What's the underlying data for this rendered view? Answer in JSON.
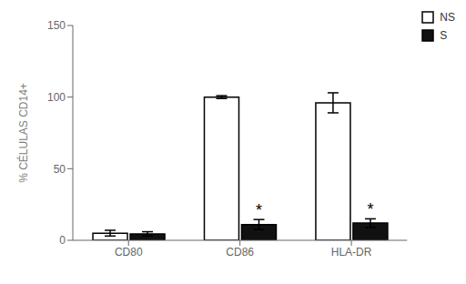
{
  "chart_data": {
    "type": "bar",
    "categories": [
      "CD80",
      "CD86",
      "HLA-DR"
    ],
    "series": [
      {
        "name": "NS",
        "color": "#ffffff",
        "values": [
          5.0,
          100.0,
          96.0
        ],
        "errors": [
          2.0,
          1.0,
          7.0
        ]
      },
      {
        "name": "S",
        "color": "#111111",
        "values": [
          4.5,
          11.0,
          12.0
        ],
        "errors": [
          1.5,
          3.5,
          3.0
        ]
      }
    ],
    "ylabel": "% CÉLULAS CD14+",
    "ylim": [
      0,
      150
    ],
    "yticks": [
      0,
      50,
      100,
      150
    ],
    "grid": false,
    "legend": "upper right",
    "annotations": [
      {
        "text": "*",
        "category": "CD86",
        "series": "S"
      },
      {
        "text": "*",
        "category": "HLA-DR",
        "series": "S"
      }
    ]
  }
}
